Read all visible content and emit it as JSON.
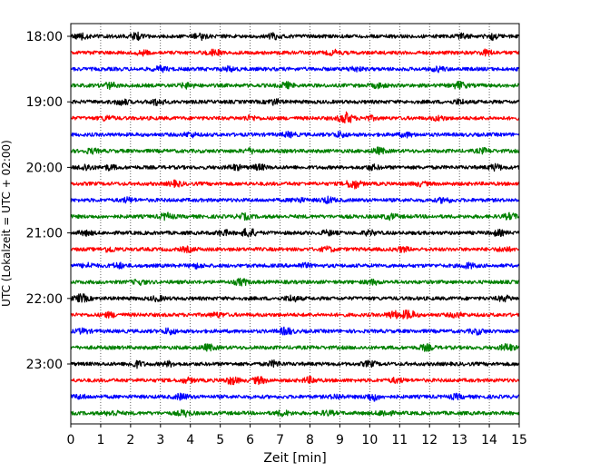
{
  "chart_data": {
    "type": "line",
    "title": "",
    "xlabel": "Zeit  [min]",
    "ylabel": "UTC (Lokalzeit = UTC + 02:00)",
    "xlim": [
      0,
      15
    ],
    "x_ticks": [
      0,
      1,
      2,
      3,
      4,
      5,
      6,
      7,
      8,
      9,
      10,
      11,
      12,
      13,
      14,
      15
    ],
    "x_tick_labels": [
      "0",
      "1",
      "2",
      "3",
      "4",
      "5",
      "6",
      "7",
      "8",
      "9",
      "10",
      "11",
      "12",
      "13",
      "14",
      "15"
    ],
    "y_tick_labels": [
      "18:00",
      "19:00",
      "20:00",
      "21:00",
      "22:00",
      "23:00"
    ],
    "y_tick_rows": [
      0,
      4,
      8,
      12,
      16,
      20
    ],
    "grid": "vertical dotted",
    "trace_colors": [
      "#000000",
      "#ff0000",
      "#0000ff",
      "#008000"
    ],
    "series": [
      {
        "start": "18:00",
        "bursts": [
          [
            0.35,
            0.7
          ],
          [
            2.2,
            0.9
          ],
          [
            4.35,
            0.8
          ],
          [
            6.8,
            0.7
          ],
          [
            13.1,
            0.6
          ],
          [
            14.1,
            0.9
          ]
        ]
      },
      {
        "start": "18:15",
        "bursts": [
          [
            2.4,
            0.6
          ],
          [
            4.8,
            0.7
          ],
          [
            8.8,
            0.6
          ],
          [
            13.9,
            0.7
          ]
        ]
      },
      {
        "start": "18:30",
        "bursts": [
          [
            3.0,
            0.7
          ],
          [
            5.3,
            0.6
          ],
          [
            9.5,
            0.6
          ],
          [
            12.3,
            0.6
          ]
        ]
      },
      {
        "start": "18:45",
        "bursts": [
          [
            1.3,
            0.8
          ],
          [
            3.9,
            0.7
          ],
          [
            7.2,
            0.8
          ],
          [
            10.3,
            0.6
          ],
          [
            13.0,
            1.0
          ]
        ]
      },
      {
        "start": "19:00",
        "bursts": [
          [
            1.7,
            0.8
          ],
          [
            2.9,
            0.9
          ],
          [
            6.8,
            0.7
          ],
          [
            13.0,
            0.6
          ]
        ]
      },
      {
        "start": "19:15",
        "bursts": [
          [
            1.2,
            0.6
          ],
          [
            6.0,
            0.6
          ],
          [
            9.2,
            1.7
          ],
          [
            10.0,
            0.5
          ],
          [
            12.3,
            0.6
          ]
        ]
      },
      {
        "start": "19:30",
        "bursts": [
          [
            4.0,
            0.6
          ],
          [
            7.3,
            0.6
          ],
          [
            9.0,
            0.7
          ],
          [
            11.2,
            0.6
          ]
        ]
      },
      {
        "start": "19:45",
        "bursts": [
          [
            0.7,
            0.6
          ],
          [
            6.0,
            0.6
          ],
          [
            10.3,
            0.8
          ],
          [
            13.8,
            0.6
          ]
        ]
      },
      {
        "start": "20:00",
        "bursts": [
          [
            0.5,
            0.9
          ],
          [
            1.3,
            0.6
          ],
          [
            5.5,
            0.7
          ],
          [
            6.3,
            0.7
          ],
          [
            10.1,
            0.6
          ],
          [
            14.2,
            0.8
          ]
        ]
      },
      {
        "start": "20:15",
        "bursts": [
          [
            3.5,
            0.7
          ],
          [
            9.45,
            1.4
          ],
          [
            11.7,
            0.5
          ]
        ]
      },
      {
        "start": "20:30",
        "bursts": [
          [
            1.9,
            0.6
          ],
          [
            7.6,
            0.6
          ],
          [
            8.6,
            0.8
          ],
          [
            12.5,
            0.7
          ]
        ]
      },
      {
        "start": "20:45",
        "bursts": [
          [
            3.2,
            0.9
          ],
          [
            5.8,
            0.7
          ],
          [
            10.7,
            0.7
          ],
          [
            14.7,
            0.8
          ]
        ]
      },
      {
        "start": "21:00",
        "bursts": [
          [
            0.5,
            0.6
          ],
          [
            5.1,
            0.7
          ],
          [
            5.95,
            1.3
          ],
          [
            8.6,
            0.6
          ],
          [
            10.0,
            0.6
          ],
          [
            14.3,
            0.7
          ]
        ]
      },
      {
        "start": "21:15",
        "bursts": [
          [
            1.3,
            0.7
          ],
          [
            3.9,
            0.6
          ],
          [
            8.6,
            0.6
          ],
          [
            11.1,
            0.6
          ],
          [
            14.5,
            0.6
          ]
        ]
      },
      {
        "start": "21:30",
        "bursts": [
          [
            0.6,
            0.6
          ],
          [
            1.6,
            0.7
          ],
          [
            4.2,
            0.6
          ],
          [
            7.8,
            0.6
          ],
          [
            13.3,
            0.7
          ]
        ]
      },
      {
        "start": "21:45",
        "bursts": [
          [
            2.3,
            0.6
          ],
          [
            5.7,
            0.9
          ],
          [
            10.1,
            0.6
          ]
        ]
      },
      {
        "start": "22:00",
        "bursts": [
          [
            0.35,
            1.1
          ],
          [
            2.9,
            0.6
          ],
          [
            7.4,
            0.8
          ],
          [
            14.5,
            0.7
          ]
        ]
      },
      {
        "start": "22:15",
        "bursts": [
          [
            1.3,
            0.6
          ],
          [
            4.9,
            0.6
          ],
          [
            10.8,
            1.0
          ],
          [
            11.3,
            1.3
          ],
          [
            12.9,
            0.6
          ]
        ]
      },
      {
        "start": "22:30",
        "bursts": [
          [
            0.4,
            0.6
          ],
          [
            3.3,
            0.8
          ],
          [
            7.2,
            1.0
          ],
          [
            13.6,
            0.7
          ]
        ]
      },
      {
        "start": "22:45",
        "bursts": [
          [
            4.6,
            0.8
          ],
          [
            11.9,
            0.8
          ],
          [
            14.6,
            1.0
          ]
        ]
      },
      {
        "start": "23:00",
        "bursts": [
          [
            2.2,
            0.9
          ],
          [
            3.3,
            0.6
          ],
          [
            6.8,
            0.8
          ],
          [
            10.0,
            0.7
          ]
        ]
      },
      {
        "start": "23:15",
        "bursts": [
          [
            3.9,
            0.6
          ],
          [
            5.4,
            1.0
          ],
          [
            6.3,
            0.9
          ],
          [
            8.0,
            0.8
          ],
          [
            10.9,
            0.6
          ]
        ]
      },
      {
        "start": "23:30",
        "bursts": [
          [
            0.3,
            0.5
          ],
          [
            3.7,
            0.8
          ],
          [
            8.9,
            0.6
          ],
          [
            10.1,
            1.1
          ],
          [
            12.9,
            0.6
          ]
        ]
      },
      {
        "start": "23:45",
        "bursts": [
          [
            1.4,
            0.7
          ],
          [
            3.8,
            0.8
          ],
          [
            7.1,
            0.7
          ],
          [
            8.6,
            0.6
          ],
          [
            10.5,
            0.8
          ]
        ]
      }
    ]
  }
}
